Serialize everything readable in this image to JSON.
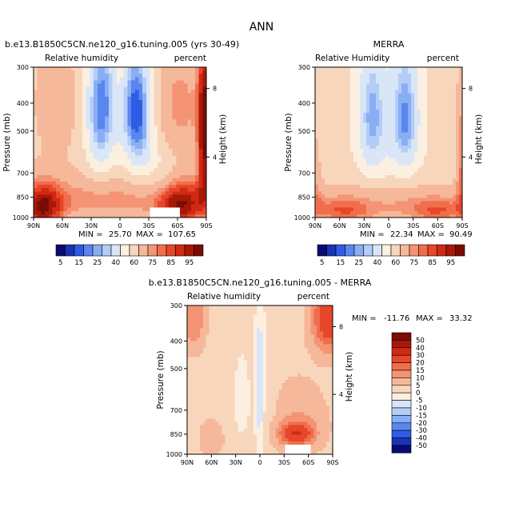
{
  "figure": {
    "title": "ANN"
  },
  "colors": {
    "rh_scale": [
      "#0a0a72",
      "#1833b8",
      "#2f5ce6",
      "#5a86ef",
      "#88aef4",
      "#b5cdf6",
      "#d8e6f8",
      "#fbefe0",
      "#f8d6bc",
      "#f6b89a",
      "#f49474",
      "#f06e4c",
      "#e84628",
      "#d02a14",
      "#a81808",
      "#7a0c04"
    ],
    "diff_scale": [
      "#0a0a72",
      "#1833b8",
      "#2f5ce6",
      "#5a86ef",
      "#88aef4",
      "#b5cdf6",
      "#d8e6f8",
      "#fbefe0",
      "#f8d6bc",
      "#f6b89a",
      "#f49474",
      "#f06e4c",
      "#e84628",
      "#d02a14",
      "#a81808",
      "#7a0c04"
    ]
  },
  "chart_data": [
    {
      "type": "heatmap",
      "id": "model",
      "title": "b.e13.B1850C5CN.ne120_g16.tuning.005 (yrs 30-49)",
      "left_label": "Relative humidity",
      "right_label": "percent",
      "ylabel": "Pressure (mb)",
      "y2label": "Height (km)",
      "x_ticks": [
        "90N",
        "60N",
        "30N",
        "0",
        "30S",
        "60S",
        "90S"
      ],
      "x_values": [
        90,
        60,
        30,
        0,
        -30,
        -60,
        -90
      ],
      "y_ticks": [
        "300",
        "400",
        "500",
        "700",
        "850",
        "1000"
      ],
      "y_values": [
        300,
        400,
        500,
        700,
        850,
        1000
      ],
      "y2_ticks": [
        "8",
        "4"
      ],
      "y2_pressures": [
        356,
        616
      ],
      "xlim": [
        90,
        -90
      ],
      "ylim": [
        1000,
        300
      ],
      "min_label": "MIN =",
      "min": "25.70",
      "max_label": "MAX =",
      "max": "107.65",
      "field": {
        "background": 55,
        "blobs": [
          {
            "lat": 20,
            "p": 420,
            "slat": 11,
            "sp": 170,
            "amp": -40
          },
          {
            "lat": -18,
            "p": 430,
            "slat": 11,
            "sp": 150,
            "amp": -45
          },
          {
            "lat": 0,
            "p": 350,
            "slat": 8,
            "sp": 90,
            "amp": -8
          },
          {
            "lat": 0,
            "p": 330,
            "slat": 5,
            "sp": 60,
            "amp": 10
          },
          {
            "lat": 0,
            "p": 860,
            "slat": 150,
            "sp": 110,
            "amp": 18
          },
          {
            "lat": 80,
            "p": 950,
            "slat": 15,
            "sp": 140,
            "amp": 30
          },
          {
            "lat": -62,
            "p": 920,
            "slat": 18,
            "sp": 140,
            "amp": 28
          },
          {
            "lat": -88,
            "p": 500,
            "slat": 5,
            "sp": 240,
            "amp": 40
          },
          {
            "lat": -62,
            "p": 420,
            "slat": 20,
            "sp": 150,
            "amp": 18
          },
          {
            "lat": 65,
            "p": 400,
            "slat": 20,
            "sp": 150,
            "amp": 10
          },
          {
            "lat": -40,
            "p": 700,
            "slat": 18,
            "sp": 140,
            "amp": -12
          }
        ],
        "masks": [
          {
            "lat0": -30,
            "lat1": -62,
            "p0": 915,
            "p1": 1000
          }
        ]
      }
    },
    {
      "type": "heatmap",
      "id": "merra",
      "title": "MERRA",
      "left_label": "Relative Humidity",
      "right_label": "percent",
      "ylabel": "Pressure (mb)",
      "y2label": "Height (km)",
      "x_ticks": [
        "90N",
        "60N",
        "30N",
        "0",
        "30S",
        "60S",
        "90S"
      ],
      "x_values": [
        90,
        60,
        30,
        0,
        -30,
        -60,
        -90
      ],
      "y_ticks": [
        "300",
        "400",
        "500",
        "700",
        "850",
        "1000"
      ],
      "y_values": [
        300,
        400,
        500,
        700,
        850,
        1000
      ],
      "y2_ticks": [
        "8",
        "4"
      ],
      "y2_pressures": [
        356,
        616
      ],
      "xlim": [
        90,
        -90
      ],
      "ylim": [
        1000,
        300
      ],
      "min_label": "MIN =",
      "min": "22.34",
      "max_label": "MAX =",
      "max": "90.49",
      "field": {
        "background": 52,
        "blobs": [
          {
            "lat": 20,
            "p": 450,
            "slat": 12,
            "sp": 170,
            "amp": -30
          },
          {
            "lat": -20,
            "p": 450,
            "slat": 12,
            "sp": 160,
            "amp": -34
          },
          {
            "lat": 0,
            "p": 600,
            "slat": 8,
            "sp": 200,
            "amp": -3
          },
          {
            "lat": 0,
            "p": 900,
            "slat": 160,
            "sp": 110,
            "amp": 18
          },
          {
            "lat": 55,
            "p": 960,
            "slat": 25,
            "sp": 70,
            "amp": 14
          },
          {
            "lat": -60,
            "p": 960,
            "slat": 25,
            "sp": 70,
            "amp": 14
          },
          {
            "lat": -88,
            "p": 600,
            "slat": 4,
            "sp": 250,
            "amp": 22
          },
          {
            "lat": 88,
            "p": 700,
            "slat": 5,
            "sp": 250,
            "amp": 10
          }
        ],
        "masks": []
      },
      "colorbar": {
        "labels": [
          "5",
          "15",
          "25",
          "40",
          "60",
          "75",
          "85",
          "95"
        ],
        "label_boxes": [
          0,
          2,
          4,
          6,
          8,
          10,
          12,
          14
        ]
      }
    },
    {
      "type": "heatmap",
      "id": "diff",
      "title": "b.e13.B1850C5CN.ne120_g16.tuning.005 - MERRA",
      "left_label": "Relative humidity",
      "right_label": "percent",
      "ylabel": "Pressure (mb)",
      "y2label": "Height (km)",
      "x_ticks": [
        "90N",
        "60N",
        "30N",
        "0",
        "30S",
        "60S",
        "90S"
      ],
      "x_values": [
        90,
        60,
        30,
        0,
        -30,
        -60,
        -90
      ],
      "y_ticks": [
        "300",
        "400",
        "500",
        "700",
        "850",
        "1000"
      ],
      "y_values": [
        300,
        400,
        500,
        700,
        850,
        1000
      ],
      "y2_ticks": [
        "8",
        "4"
      ],
      "y2_pressures": [
        356,
        616
      ],
      "xlim": [
        90,
        -90
      ],
      "ylim": [
        1000,
        300
      ],
      "min_label": "MIN =",
      "min": "-11.76",
      "max_label": "MAX =",
      "max": "33.32",
      "field": {
        "background": 3,
        "blobs": [
          {
            "lat": -45,
            "p": 850,
            "slat": 14,
            "sp": 50,
            "amp": 22
          },
          {
            "lat": -48,
            "p": 780,
            "slat": 25,
            "sp": 160,
            "amp": 7
          },
          {
            "lat": -85,
            "p": 330,
            "slat": 14,
            "sp": 70,
            "amp": 25
          },
          {
            "lat": 82,
            "p": 330,
            "slat": 10,
            "sp": 70,
            "amp": 12
          },
          {
            "lat": 0,
            "p": 600,
            "slat": 4,
            "sp": 300,
            "amp": -12
          },
          {
            "lat": 22,
            "p": 650,
            "slat": 10,
            "sp": 200,
            "amp": -5
          },
          {
            "lat": -14,
            "p": 550,
            "slat": 5,
            "sp": 180,
            "amp": -3
          },
          {
            "lat": 60,
            "p": 880,
            "slat": 12,
            "sp": 100,
            "amp": 5
          }
        ],
        "masks": [
          {
            "lat0": -30,
            "lat1": -62,
            "p0": 930,
            "p1": 1000
          }
        ]
      },
      "colorbar": {
        "labels": [
          "50",
          "40",
          "30",
          "20",
          "15",
          "10",
          "5",
          "0",
          "-5",
          "-10",
          "-15",
          "-20",
          "-30",
          "-40",
          "-50"
        ]
      }
    }
  ],
  "levels": {
    "rh": [
      5,
      10,
      15,
      20,
      25,
      30,
      40,
      50,
      60,
      70,
      75,
      80,
      85,
      90,
      95
    ],
    "diff": [
      -50,
      -40,
      -30,
      -20,
      -15,
      -10,
      -5,
      0,
      5,
      10,
      15,
      20,
      30,
      40,
      50
    ]
  }
}
